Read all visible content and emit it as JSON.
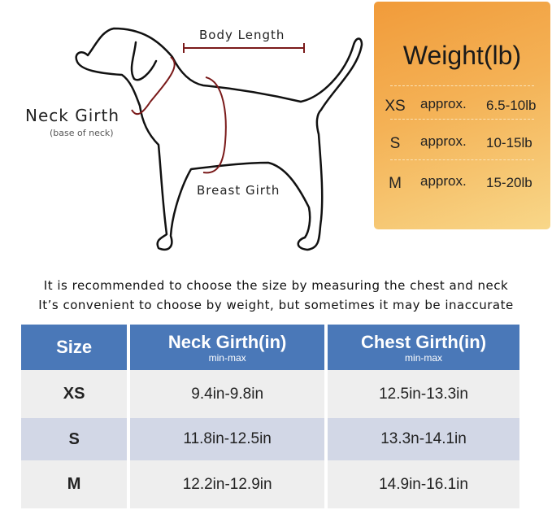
{
  "diagram": {
    "body_length": "Body Length",
    "neck_girth": "Neck Girth",
    "neck_girth_note": "(base of neck)",
    "breast_girth": "Breast Girth",
    "measure_color": "#7a1a1a"
  },
  "weight": {
    "title": "Weight(lb)",
    "rows": [
      {
        "size": "XS",
        "approx": "approx.",
        "range": "6.5-10lb"
      },
      {
        "size": "S",
        "approx": "approx.",
        "range": "10-15lb"
      },
      {
        "size": "M",
        "approx": "approx.",
        "range": "15-20lb"
      }
    ]
  },
  "notes": [
    "It is recommended to choose the size by measuring the chest and neck",
    "It’s convenient to choose by weight, but sometimes it may be inaccurate"
  ],
  "table": {
    "headers": [
      {
        "label": "Size",
        "sub": ""
      },
      {
        "label": "Neck Girth(in)",
        "sub": "min-max"
      },
      {
        "label": "Chest Girth(in)",
        "sub": "min-max"
      }
    ],
    "rows": [
      [
        "XS",
        "9.4in-9.8in",
        "12.5in-13.3in"
      ],
      [
        "S",
        "11.8in-12.5in",
        "13.3n-14.1in"
      ],
      [
        "M",
        "12.2in-12.9in",
        "14.9in-16.1in"
      ]
    ],
    "header_color": "#4a78b8"
  }
}
